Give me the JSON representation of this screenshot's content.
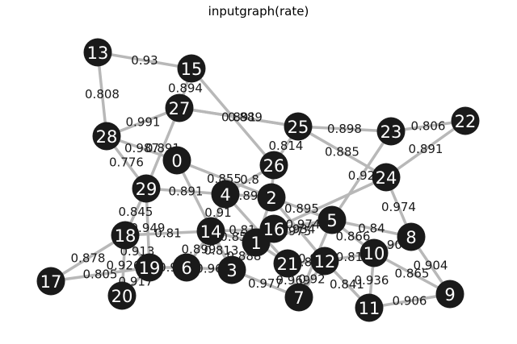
{
  "figure": {
    "title": "inputgraph(rate)"
  },
  "graph": {
    "nodes": [
      "0",
      "1",
      "2",
      "3",
      "4",
      "5",
      "6",
      "7",
      "8",
      "9",
      "10",
      "11",
      "12",
      "13",
      "14",
      "15",
      "16",
      "17",
      "18",
      "19",
      "20",
      "21",
      "22",
      "23",
      "24",
      "25",
      "26",
      "27",
      "28",
      "29"
    ],
    "edges": [
      {
        "source": "13",
        "target": "15",
        "weight": "0.93"
      },
      {
        "source": "13",
        "target": "28",
        "weight": "0.808"
      },
      {
        "source": "15",
        "target": "27",
        "weight": "0.894"
      },
      {
        "source": "15",
        "target": "26",
        "weight": ""
      },
      {
        "source": "27",
        "target": "28",
        "weight": "0.991"
      },
      {
        "source": "27",
        "target": "25",
        "weight": "0.891"
      },
      {
        "source": "27",
        "target": "25",
        "weight": "0.889"
      },
      {
        "source": "27",
        "target": "29",
        "weight": "0.891"
      },
      {
        "source": "28",
        "target": "0",
        "weight": "0.987"
      },
      {
        "source": "28",
        "target": "29",
        "weight": "0.776"
      },
      {
        "source": "25",
        "target": "23",
        "weight": "0.898"
      },
      {
        "source": "25",
        "target": "24",
        "weight": "0.885"
      },
      {
        "source": "25",
        "target": "26",
        "weight": "0.814"
      },
      {
        "source": "23",
        "target": "22",
        "weight": "0.806"
      },
      {
        "source": "22",
        "target": "24",
        "weight": "0.891"
      },
      {
        "source": "23",
        "target": "5",
        "weight": "0.92"
      },
      {
        "source": "24",
        "target": "8",
        "weight": "0.974"
      },
      {
        "source": "24",
        "target": "16",
        "weight": ""
      },
      {
        "source": "26",
        "target": "4",
        "weight": "0.8"
      },
      {
        "source": "26",
        "target": "2",
        "weight": ""
      },
      {
        "source": "0",
        "target": "2",
        "weight": "0.855"
      },
      {
        "source": "0",
        "target": "3",
        "weight": ""
      },
      {
        "source": "29",
        "target": "18",
        "weight": "0.845"
      },
      {
        "source": "29",
        "target": "19",
        "weight": "0.949"
      },
      {
        "source": "29",
        "target": "4",
        "weight": "0.891"
      },
      {
        "source": "4",
        "target": "2",
        "weight": "0.898"
      },
      {
        "source": "4",
        "target": "14",
        "weight": "0.91"
      },
      {
        "source": "4",
        "target": "21",
        "weight": ""
      },
      {
        "source": "2",
        "target": "5",
        "weight": "0.895"
      },
      {
        "source": "2",
        "target": "1",
        "weight": ""
      },
      {
        "source": "2",
        "target": "12",
        "weight": "0.934"
      },
      {
        "source": "16",
        "target": "5",
        "weight": "0.974"
      },
      {
        "source": "5",
        "target": "1",
        "weight": "0.975"
      },
      {
        "source": "5",
        "target": "10",
        "weight": "0.866"
      },
      {
        "source": "5",
        "target": "8",
        "weight": "0.84"
      },
      {
        "source": "5",
        "target": "7",
        "weight": "0.978"
      },
      {
        "source": "8",
        "target": "9",
        "weight": "0.904"
      },
      {
        "source": "8",
        "target": "10",
        "weight": "0.906"
      },
      {
        "source": "10",
        "target": "9",
        "weight": "0.865"
      },
      {
        "source": "10",
        "target": "11",
        "weight": "0.936"
      },
      {
        "source": "10",
        "target": "12",
        "weight": "0.81"
      },
      {
        "source": "11",
        "target": "9",
        "weight": "0.906"
      },
      {
        "source": "12",
        "target": "11",
        "weight": "0.841"
      },
      {
        "source": "12",
        "target": "7",
        "weight": "0.92"
      },
      {
        "source": "21",
        "target": "12",
        "weight": "0.81"
      },
      {
        "source": "21",
        "target": "7",
        "weight": "0.969"
      },
      {
        "source": "14",
        "target": "16",
        "weight": "0.81"
      },
      {
        "source": "14",
        "target": "1",
        "weight": "0.85"
      },
      {
        "source": "14",
        "target": "6",
        "weight": "0.899"
      },
      {
        "source": "14",
        "target": "3",
        "weight": "0.813"
      },
      {
        "source": "1",
        "target": "3",
        "weight": "0.888"
      },
      {
        "source": "1",
        "target": "21",
        "weight": ""
      },
      {
        "source": "6",
        "target": "3",
        "weight": "0.96"
      },
      {
        "source": "3",
        "target": "7",
        "weight": "0.977"
      },
      {
        "source": "18",
        "target": "14",
        "weight": "0.81"
      },
      {
        "source": "18",
        "target": "19",
        "weight": "0.913"
      },
      {
        "source": "18",
        "target": "17",
        "weight": "0.878"
      },
      {
        "source": "18",
        "target": "20",
        "weight": "0.926"
      },
      {
        "source": "17",
        "target": "19",
        "weight": "0.805"
      },
      {
        "source": "19",
        "target": "20",
        "weight": "0.917"
      },
      {
        "source": "19",
        "target": "6",
        "weight": "0.9"
      }
    ]
  }
}
